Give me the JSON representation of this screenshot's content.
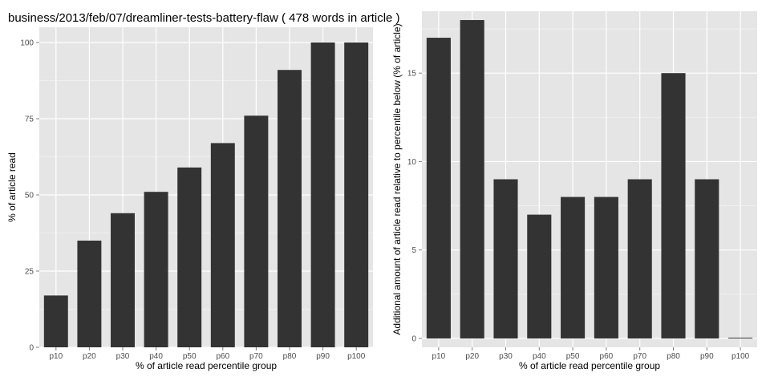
{
  "title": "business/2013/feb/07/dreamliner-tests-battery-flaw ( 478 words in article )",
  "chart_data": [
    {
      "type": "bar",
      "categories": [
        "p10",
        "p20",
        "p30",
        "p40",
        "p50",
        "p60",
        "p70",
        "p80",
        "p90",
        "p100"
      ],
      "values": [
        17,
        35,
        44,
        51,
        59,
        67,
        76,
        91,
        100,
        100
      ],
      "xlabel": "% of article read percentile group",
      "ylabel": "% of article read",
      "ylim": [
        0,
        105
      ],
      "yticks": [
        0,
        25,
        50,
        75,
        100
      ],
      "grid": true
    },
    {
      "type": "bar",
      "categories": [
        "p10",
        "p20",
        "p30",
        "p40",
        "p50",
        "p60",
        "p70",
        "p80",
        "p90",
        "p100"
      ],
      "values": [
        17,
        18,
        9,
        7,
        8,
        8,
        9,
        15,
        9,
        0
      ],
      "xlabel": "% of article read percentile group",
      "ylabel": "Additional amount of article read relative to percentile below (% of article)",
      "ylim": [
        -0.5,
        18.5
      ],
      "yticks": [
        0,
        5,
        10,
        15
      ],
      "grid": true
    }
  ],
  "colors": {
    "panel": "#e5e5e5",
    "grid": "#ffffff",
    "bar": "#333333",
    "tick_text": "#4d4d4d"
  }
}
